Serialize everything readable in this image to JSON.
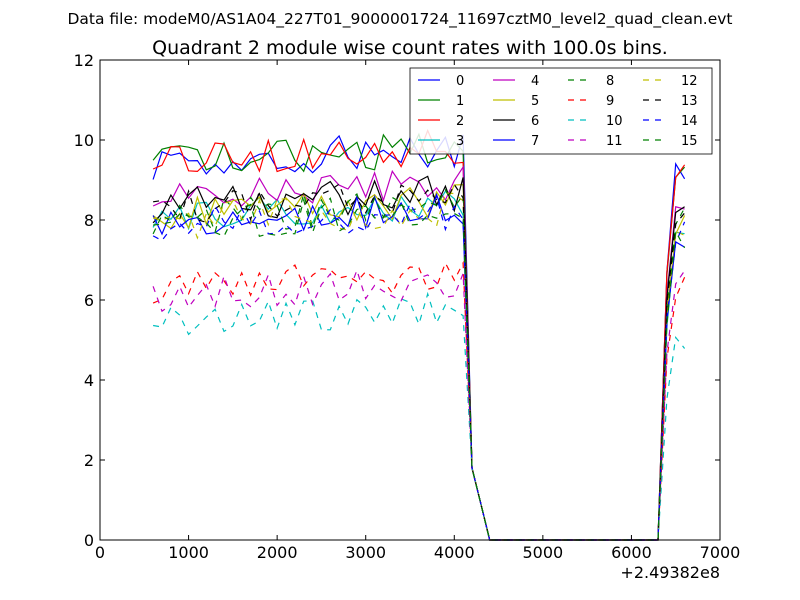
{
  "chart_data": {
    "type": "line",
    "suptitle": "Data file: modeM0/AS1A04_227T01_9000001724_11697cztM0_level2_quad_clean.evt",
    "title": "Quadrant 2 module wise count rates with 100.0s bins.",
    "xlabel": "",
    "ylabel": "",
    "x_offset_label": "+2.49382e8",
    "xlim": [
      0,
      7000
    ],
    "ylim": [
      0,
      12
    ],
    "xticks": [
      0,
      1000,
      2000,
      3000,
      4000,
      5000,
      6000,
      7000
    ],
    "yticks": [
      0,
      2,
      4,
      6,
      8,
      10,
      12
    ],
    "xtick_labels": [
      "0",
      "1000",
      "2000",
      "3000",
      "4000",
      "5000",
      "6000",
      "7000"
    ],
    "ytick_labels": [
      "0",
      "2",
      "4",
      "6",
      "8",
      "10",
      "12"
    ],
    "grid": false,
    "legend_position": "top-right",
    "legend_columns": 4,
    "x_start": 600,
    "x_step": 100,
    "x_count": 61,
    "gap_start_index": 36,
    "gap_end_index": 57,
    "drop_values": [
      1.8,
      0.9
    ],
    "series": [
      {
        "name": "0",
        "color": "#0000ff",
        "dash": "solid",
        "mean": 9.45,
        "end": 9.3
      },
      {
        "name": "1",
        "color": "#008000",
        "dash": "solid",
        "mean": 9.45,
        "end": 9.2
      },
      {
        "name": "2",
        "color": "#ff0000",
        "dash": "solid",
        "mean": 9.5,
        "end": 9.3
      },
      {
        "name": "3",
        "color": "#00bfbf",
        "dash": "solid",
        "mean": 8.05,
        "end": 7.4
      },
      {
        "name": "4",
        "color": "#bf00bf",
        "dash": "solid",
        "mean": 8.55,
        "end": 8.5
      },
      {
        "name": "5",
        "color": "#bfbf00",
        "dash": "solid",
        "mean": 8.15,
        "end": 7.9
      },
      {
        "name": "6",
        "color": "#000000",
        "dash": "solid",
        "mean": 8.35,
        "end": 8.4
      },
      {
        "name": "7",
        "color": "#0000ff",
        "dash": "solid",
        "mean": 7.95,
        "end": 7.6
      },
      {
        "name": "8",
        "color": "#008000",
        "dash": "dashed",
        "mean": 8.05,
        "end": 8.1
      },
      {
        "name": "9",
        "color": "#ff0000",
        "dash": "dashed",
        "mean": 6.35,
        "end": 6.3
      },
      {
        "name": "10",
        "color": "#00bfbf",
        "dash": "dashed",
        "mean": 5.45,
        "end": 4.9
      },
      {
        "name": "11",
        "color": "#bf00bf",
        "dash": "dashed",
        "mean": 6.1,
        "end": 6.5
      },
      {
        "name": "12",
        "color": "#bfbf00",
        "dash": "dashed",
        "mean": 7.95,
        "end": 7.8
      },
      {
        "name": "13",
        "color": "#000000",
        "dash": "dashed",
        "mean": 8.3,
        "end": 8.2
      },
      {
        "name": "14",
        "color": "#0000ff",
        "dash": "dashed",
        "mean": 7.85,
        "end": 7.7
      },
      {
        "name": "15",
        "color": "#008000",
        "dash": "dashed",
        "mean": 7.9,
        "end": 7.5
      }
    ]
  }
}
